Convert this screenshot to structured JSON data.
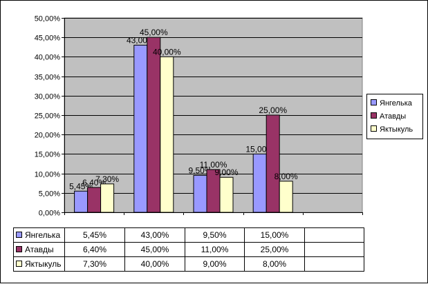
{
  "chart_data": {
    "type": "bar",
    "categories": [
      "",
      "",
      "",
      "",
      ""
    ],
    "series": [
      {
        "name": "Янгелька",
        "values": [
          5.45,
          43.0,
          9.5,
          15.0,
          null
        ],
        "labels": [
          "5,45%",
          "43,00%",
          "9,50%",
          "15,00%",
          ""
        ],
        "color": "#9999ff"
      },
      {
        "name": "Атавды",
        "values": [
          6.4,
          45.0,
          11.0,
          25.0,
          null
        ],
        "labels": [
          "6,40%",
          "45,00%",
          "11,00%",
          "25,00%",
          ""
        ],
        "color": "#993366"
      },
      {
        "name": "Яктыкуль",
        "values": [
          7.3,
          40.0,
          9.0,
          8.0,
          null
        ],
        "labels": [
          "7,30%",
          "40,00%",
          "9,00%",
          "8,00%",
          ""
        ],
        "color": "#ffffcc"
      }
    ],
    "ylim": [
      0,
      50
    ],
    "yticks": [
      "0,00%",
      "5,00%",
      "10,00%",
      "15,00%",
      "20,00%",
      "25,00%",
      "30,00%",
      "35,00%",
      "40,00%",
      "45,00%",
      "50,00%"
    ],
    "grid": true,
    "plot_background": "#c0c0c0",
    "legend_position": "right"
  }
}
